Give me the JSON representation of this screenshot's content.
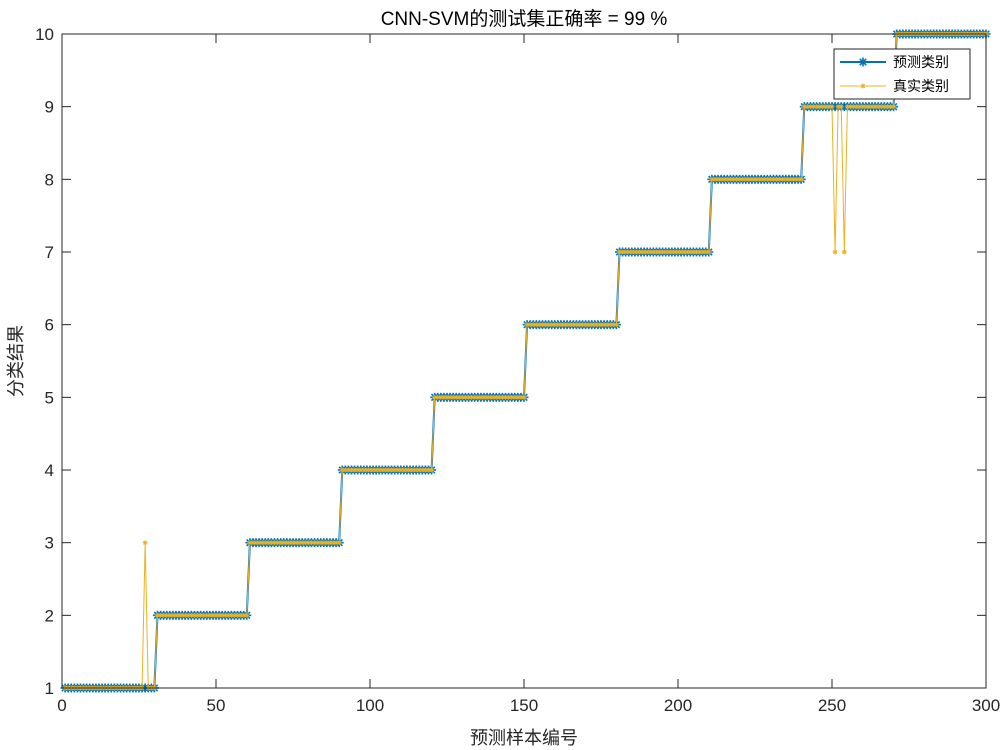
{
  "chart_data": {
    "type": "line",
    "title": "CNN-SVM的测试集正确率 = 99 %",
    "xlabel": "预测样本编号",
    "ylabel": "分类结果",
    "xlim": [
      0,
      300
    ],
    "ylim": [
      1,
      10
    ],
    "xticks": [
      0,
      50,
      100,
      150,
      200,
      250,
      300
    ],
    "yticks": [
      1,
      2,
      3,
      4,
      5,
      6,
      7,
      8,
      9,
      10
    ],
    "grid": false,
    "legend_position": "top-right",
    "samples_per_class": 30,
    "num_classes": 10,
    "series": [
      {
        "name": "预测类别",
        "color": "#0072BD",
        "marker": "*",
        "description": "classes 1-10, 30 samples each, no errors"
      },
      {
        "name": "真实类别",
        "color": "#EDB120",
        "marker": "*",
        "exceptions": [
          {
            "x": 27,
            "y": 3
          },
          {
            "x": 251,
            "y": 7
          },
          {
            "x": 254,
            "y": 7
          }
        ]
      }
    ]
  }
}
